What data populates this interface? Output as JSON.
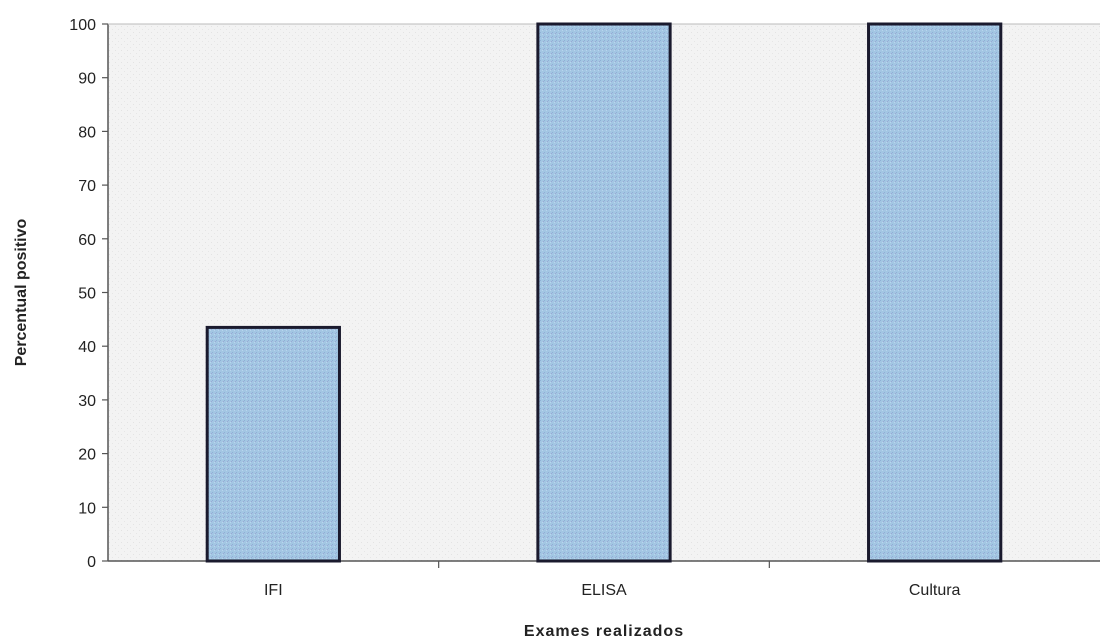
{
  "chart_data": {
    "type": "bar",
    "title": "",
    "xlabel": "Exames realizados",
    "ylabel": "Percentual positivo",
    "categories": [
      "IFI",
      "ELISA",
      "Cultura"
    ],
    "values": [
      43.5,
      100,
      100
    ],
    "ylim": [
      0,
      100
    ],
    "yticks": [
      "0",
      "10",
      "20",
      "30",
      "40",
      "50",
      "60",
      "70",
      "80",
      "90",
      "100"
    ],
    "grid": false,
    "legend": "none",
    "colors": {
      "bar_fill": "#9ec4e2",
      "bar_stroke": "#1a1a2e",
      "plot_bg": "#f2f2f2",
      "axis": "#555555"
    }
  }
}
